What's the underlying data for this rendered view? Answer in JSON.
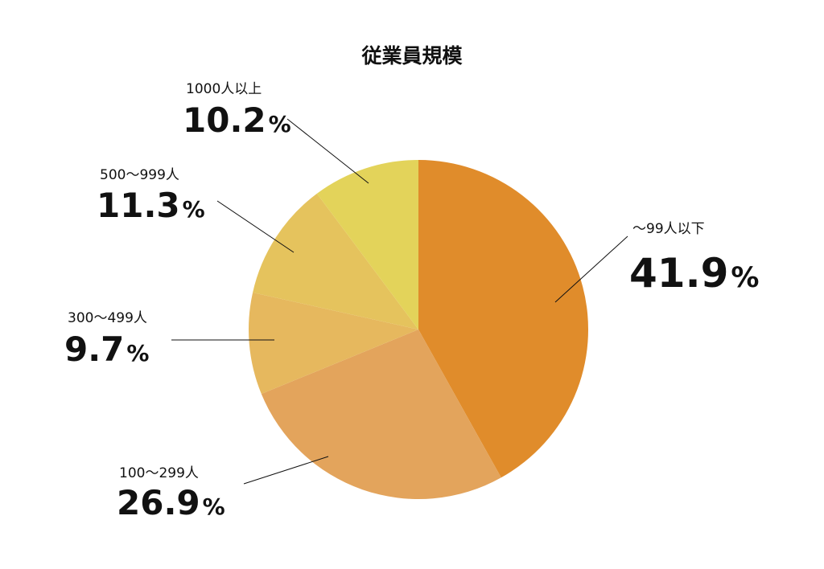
{
  "chart_data": {
    "type": "pie",
    "title": "従業員規模",
    "start_angle_deg": 0,
    "direction": "clockwise",
    "slices": [
      {
        "label": "～99人以下",
        "value": 41.9,
        "value_text": "41.9",
        "unit": "%",
        "color": "#E08C2B"
      },
      {
        "label": "100～299人",
        "value": 26.9,
        "value_text": "26.9",
        "unit": "%",
        "color": "#E3A45C"
      },
      {
        "label": "300～499人",
        "value": 9.7,
        "value_text": "9.7",
        "unit": "%",
        "color": "#E6B85E"
      },
      {
        "label": "500～999人",
        "value": 11.3,
        "value_text": "11.3",
        "unit": "%",
        "color": "#E5C35D"
      },
      {
        "label": "1000人以上",
        "value": 10.2,
        "value_text": "10.2",
        "unit": "%",
        "color": "#E3D35A"
      }
    ]
  }
}
